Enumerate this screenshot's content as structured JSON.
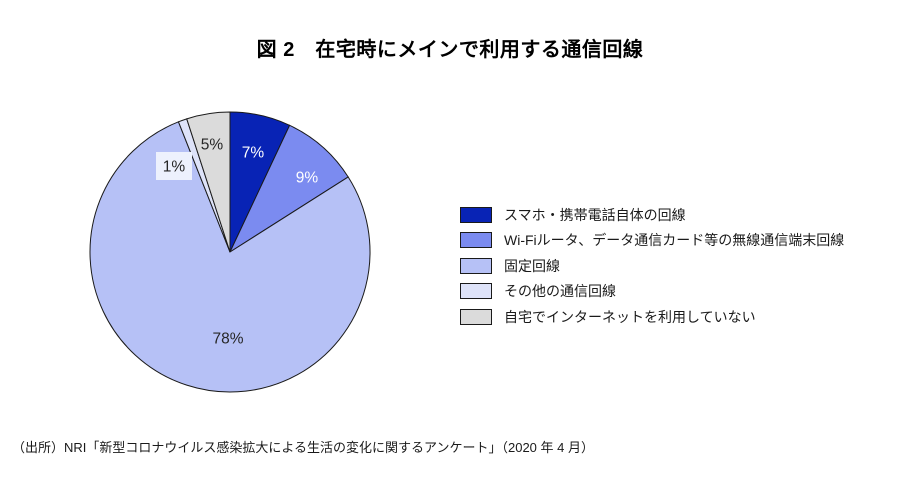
{
  "title": "図 2　在宅時にメインで利用する通信回線",
  "source": "（出所）NRI「新型コロナウイルス感染拡大による生活の変化に関するアンケート」（2020 年 4 月）",
  "chart_data": {
    "type": "pie",
    "title": "図 2　在宅時にメインで利用する通信回線",
    "categories": [
      "スマホ・携帯電話自体の回線",
      "Wi-Fiルータ、データ通信カード等の無線通信端末回線",
      "固定回線",
      "その他の通信回線",
      "自宅でインターネットを利用していない"
    ],
    "values": [
      7,
      9,
      78,
      1,
      5
    ],
    "unit": "%",
    "data_labels": [
      "7%",
      "9%",
      "78%",
      "1%",
      "5%"
    ],
    "colors": [
      "#0823B5",
      "#7B8BF0",
      "#B6C1F6",
      "#DEE3F9",
      "#DBDBDB"
    ],
    "label_text_colors": [
      "#FFFFFF",
      "#FFFFFF",
      "#262626",
      "#262626",
      "#262626"
    ],
    "slice_stroke_color": "#1a1a1a",
    "start_angle_deg": 0,
    "direction": "clockwise",
    "legend_position": "right",
    "background": "#ffffff"
  }
}
